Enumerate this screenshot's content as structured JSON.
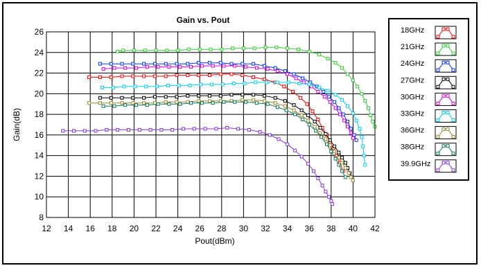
{
  "chart_data": {
    "type": "line",
    "title": "Gain vs. Pout",
    "xlabel": "Pout(dBm)",
    "ylabel": "Gain(dB)",
    "xlim": [
      12,
      42
    ],
    "ylim": [
      8,
      26
    ],
    "xticks": [
      12,
      14,
      16,
      18,
      20,
      22,
      24,
      26,
      28,
      30,
      32,
      34,
      36,
      38,
      40,
      42
    ],
    "yticks": [
      8,
      10,
      12,
      14,
      16,
      18,
      20,
      22,
      24,
      26
    ],
    "grid": true,
    "legend_position": "right",
    "series": [
      {
        "name": "18GHz",
        "color": "#ff0000",
        "points": [
          [
            15.9,
            21.6
          ],
          [
            16.9,
            21.6
          ],
          [
            17.9,
            21.6
          ],
          [
            18.9,
            21.7
          ],
          [
            19.9,
            21.7
          ],
          [
            20.9,
            21.7
          ],
          [
            21.9,
            21.7
          ],
          [
            22.9,
            21.7
          ],
          [
            23.9,
            21.8
          ],
          [
            24.9,
            21.8
          ],
          [
            25.9,
            21.8
          ],
          [
            26.9,
            21.8
          ],
          [
            27.9,
            21.9
          ],
          [
            28.9,
            21.9
          ],
          [
            29.9,
            21.8
          ],
          [
            30.9,
            21.6
          ],
          [
            31.9,
            21.4
          ],
          [
            32.9,
            21.1
          ],
          [
            33.7,
            20.7
          ],
          [
            34.5,
            20.2
          ],
          [
            35.2,
            19.6
          ],
          [
            35.8,
            19.0
          ],
          [
            36.3,
            18.3
          ],
          [
            36.8,
            17.5
          ],
          [
            37.2,
            16.7
          ],
          [
            37.6,
            16.0
          ],
          [
            37.9,
            15.3
          ],
          [
            38.2,
            14.7
          ],
          [
            38.5,
            14.0
          ],
          [
            38.8,
            13.3
          ],
          [
            39.1,
            12.5
          ]
        ]
      },
      {
        "name": "21GHz",
        "color": "#33cc33",
        "points": [
          [
            18.5,
            24.1
          ],
          [
            19.0,
            24.2
          ],
          [
            20.0,
            24.2
          ],
          [
            21.0,
            24.2
          ],
          [
            22.0,
            24.2
          ],
          [
            23.0,
            24.2
          ],
          [
            24.0,
            24.2
          ],
          [
            25.0,
            24.3
          ],
          [
            26.0,
            24.3
          ],
          [
            27.0,
            24.3
          ],
          [
            28.0,
            24.3
          ],
          [
            29.0,
            24.4
          ],
          [
            30.0,
            24.4
          ],
          [
            31.0,
            24.4
          ],
          [
            32.0,
            24.5
          ],
          [
            33.0,
            24.5
          ],
          [
            34.0,
            24.4
          ],
          [
            35.0,
            24.3
          ],
          [
            36.0,
            24.1
          ],
          [
            36.9,
            23.8
          ],
          [
            37.7,
            23.4
          ],
          [
            38.4,
            23.0
          ],
          [
            39.0,
            22.5
          ],
          [
            39.5,
            21.9
          ],
          [
            40.0,
            21.3
          ],
          [
            40.4,
            20.7
          ],
          [
            40.8,
            20.0
          ],
          [
            41.1,
            19.3
          ],
          [
            41.4,
            18.6
          ],
          [
            41.6,
            17.9
          ],
          [
            41.8,
            17.3
          ],
          [
            42.0,
            16.8
          ]
        ]
      },
      {
        "name": "24GHz",
        "color": "#0033ff",
        "points": [
          [
            16.9,
            22.9
          ],
          [
            17.9,
            22.9
          ],
          [
            18.9,
            22.9
          ],
          [
            19.9,
            22.9
          ],
          [
            20.9,
            22.9
          ],
          [
            21.9,
            22.9
          ],
          [
            22.9,
            22.9
          ],
          [
            23.9,
            22.9
          ],
          [
            24.9,
            22.9
          ],
          [
            25.9,
            23.0
          ],
          [
            26.9,
            23.0
          ],
          [
            27.9,
            23.0
          ],
          [
            28.9,
            22.9
          ],
          [
            29.9,
            22.9
          ],
          [
            30.9,
            22.9
          ],
          [
            31.9,
            22.7
          ],
          [
            32.9,
            22.5
          ],
          [
            33.8,
            22.2
          ],
          [
            34.6,
            21.9
          ],
          [
            35.4,
            21.5
          ],
          [
            36.1,
            21.1
          ],
          [
            36.7,
            20.7
          ],
          [
            37.3,
            20.2
          ],
          [
            37.8,
            19.7
          ],
          [
            38.3,
            19.2
          ],
          [
            38.7,
            18.6
          ],
          [
            39.1,
            18.0
          ],
          [
            39.5,
            17.3
          ],
          [
            39.8,
            16.6
          ],
          [
            40.1,
            16.0
          ],
          [
            40.3,
            15.5
          ]
        ]
      },
      {
        "name": "27GHz",
        "color": "#000000",
        "points": [
          [
            16.9,
            19.6
          ],
          [
            17.9,
            19.6
          ],
          [
            18.9,
            19.6
          ],
          [
            19.9,
            19.6
          ],
          [
            20.9,
            19.6
          ],
          [
            21.9,
            19.7
          ],
          [
            22.9,
            19.7
          ],
          [
            23.9,
            19.7
          ],
          [
            24.9,
            19.8
          ],
          [
            25.9,
            19.8
          ],
          [
            26.9,
            19.8
          ],
          [
            27.9,
            19.8
          ],
          [
            28.9,
            19.9
          ],
          [
            29.9,
            19.9
          ],
          [
            30.9,
            19.9
          ],
          [
            31.9,
            19.8
          ],
          [
            32.9,
            19.6
          ],
          [
            33.8,
            19.3
          ],
          [
            34.6,
            18.9
          ],
          [
            35.3,
            18.4
          ],
          [
            35.9,
            17.9
          ],
          [
            36.5,
            17.3
          ],
          [
            37.0,
            16.7
          ],
          [
            37.5,
            16.1
          ],
          [
            37.9,
            15.5
          ],
          [
            38.3,
            14.9
          ],
          [
            38.7,
            14.3
          ],
          [
            39.0,
            13.8
          ],
          [
            39.3,
            13.3
          ],
          [
            39.5,
            12.8
          ],
          [
            39.7,
            12.3
          ],
          [
            39.9,
            11.9
          ]
        ]
      },
      {
        "name": "30GHz",
        "color": "#dd00dd",
        "points": [
          [
            17.2,
            22.4
          ],
          [
            18.2,
            22.5
          ],
          [
            19.2,
            22.5
          ],
          [
            20.2,
            22.5
          ],
          [
            21.2,
            22.6
          ],
          [
            22.2,
            22.6
          ],
          [
            23.2,
            22.6
          ],
          [
            24.2,
            22.6
          ],
          [
            25.2,
            22.6
          ],
          [
            26.2,
            22.7
          ],
          [
            27.2,
            22.7
          ],
          [
            28.2,
            22.7
          ],
          [
            29.2,
            22.7
          ],
          [
            30.2,
            22.6
          ],
          [
            31.2,
            22.5
          ],
          [
            32.2,
            22.4
          ],
          [
            33.1,
            22.2
          ],
          [
            34.0,
            21.9
          ],
          [
            34.8,
            21.5
          ],
          [
            35.5,
            21.1
          ],
          [
            36.2,
            20.7
          ],
          [
            36.8,
            20.2
          ],
          [
            37.4,
            19.7
          ],
          [
            37.9,
            19.2
          ],
          [
            38.4,
            18.6
          ],
          [
            38.8,
            18.0
          ],
          [
            39.2,
            17.4
          ],
          [
            39.5,
            16.8
          ],
          [
            39.8,
            16.2
          ],
          [
            40.0,
            15.7
          ]
        ]
      },
      {
        "name": "33GHz",
        "color": "#00ccee",
        "points": [
          [
            17.1,
            20.6
          ],
          [
            18.1,
            20.6
          ],
          [
            19.1,
            20.7
          ],
          [
            20.1,
            20.7
          ],
          [
            21.1,
            20.7
          ],
          [
            22.1,
            20.7
          ],
          [
            23.1,
            20.8
          ],
          [
            24.1,
            20.8
          ],
          [
            25.1,
            20.8
          ],
          [
            26.1,
            20.9
          ],
          [
            27.1,
            20.9
          ],
          [
            28.1,
            20.9
          ],
          [
            29.1,
            21.0
          ],
          [
            30.1,
            21.0
          ],
          [
            31.1,
            21.1
          ],
          [
            32.1,
            21.1
          ],
          [
            33.1,
            21.1
          ],
          [
            34.1,
            21.1
          ],
          [
            35.1,
            21.0
          ],
          [
            36.0,
            20.9
          ],
          [
            36.9,
            20.6
          ],
          [
            37.7,
            20.3
          ],
          [
            38.4,
            19.9
          ],
          [
            39.0,
            19.4
          ],
          [
            39.5,
            18.8
          ],
          [
            40.0,
            18.1
          ],
          [
            40.3,
            17.4
          ],
          [
            40.6,
            16.6
          ],
          [
            40.8,
            15.8
          ],
          [
            40.9,
            14.9
          ],
          [
            41.0,
            14.0
          ],
          [
            41.1,
            13.1
          ]
        ]
      },
      {
        "name": "36GHz",
        "color": "#998833",
        "points": [
          [
            15.9,
            19.1
          ],
          [
            16.9,
            19.1
          ],
          [
            17.9,
            19.1
          ],
          [
            18.9,
            19.1
          ],
          [
            19.9,
            19.1
          ],
          [
            20.9,
            19.1
          ],
          [
            21.9,
            19.1
          ],
          [
            22.9,
            19.2
          ],
          [
            23.9,
            19.2
          ],
          [
            24.9,
            19.2
          ],
          [
            25.9,
            19.3
          ],
          [
            26.9,
            19.3
          ],
          [
            27.9,
            19.3
          ],
          [
            28.9,
            19.3
          ],
          [
            29.9,
            19.4
          ],
          [
            30.9,
            19.4
          ],
          [
            31.9,
            19.3
          ],
          [
            32.9,
            19.1
          ],
          [
            33.8,
            18.8
          ],
          [
            34.6,
            18.4
          ],
          [
            35.3,
            17.9
          ],
          [
            35.9,
            17.4
          ],
          [
            36.5,
            16.8
          ],
          [
            37.0,
            16.2
          ],
          [
            37.5,
            15.6
          ],
          [
            37.9,
            15.0
          ],
          [
            38.3,
            14.4
          ],
          [
            38.7,
            13.8
          ],
          [
            39.0,
            13.3
          ],
          [
            39.3,
            12.8
          ],
          [
            39.6,
            12.3
          ],
          [
            39.8,
            11.9
          ],
          [
            40.0,
            11.6
          ]
        ]
      },
      {
        "name": "38GHz",
        "color": "#117755",
        "points": [
          [
            17.2,
            18.8
          ],
          [
            18.2,
            18.8
          ],
          [
            19.2,
            18.9
          ],
          [
            20.2,
            18.9
          ],
          [
            21.2,
            18.9
          ],
          [
            22.2,
            19.0
          ],
          [
            23.2,
            19.0
          ],
          [
            24.2,
            19.0
          ],
          [
            25.2,
            19.1
          ],
          [
            26.2,
            19.1
          ],
          [
            27.2,
            19.1
          ],
          [
            28.2,
            19.2
          ],
          [
            29.2,
            19.2
          ],
          [
            30.2,
            19.2
          ],
          [
            31.2,
            19.1
          ],
          [
            32.2,
            19.0
          ],
          [
            33.1,
            18.7
          ],
          [
            33.9,
            18.4
          ],
          [
            34.7,
            18.0
          ],
          [
            35.4,
            17.5
          ],
          [
            36.0,
            17.0
          ],
          [
            36.6,
            16.4
          ],
          [
            37.1,
            15.8
          ],
          [
            37.6,
            15.1
          ],
          [
            38.0,
            14.4
          ],
          [
            38.4,
            13.7
          ],
          [
            38.7,
            13.1
          ],
          [
            39.0,
            12.5
          ],
          [
            39.3,
            11.9
          ]
        ]
      },
      {
        "name": "39.9GHz",
        "color": "#8833dd",
        "points": [
          [
            13.5,
            16.4
          ],
          [
            14.5,
            16.4
          ],
          [
            15.5,
            16.4
          ],
          [
            16.5,
            16.4
          ],
          [
            17.5,
            16.5
          ],
          [
            18.5,
            16.5
          ],
          [
            19.5,
            16.5
          ],
          [
            20.5,
            16.5
          ],
          [
            21.5,
            16.5
          ],
          [
            22.5,
            16.5
          ],
          [
            23.5,
            16.5
          ],
          [
            24.5,
            16.6
          ],
          [
            25.5,
            16.6
          ],
          [
            26.5,
            16.6
          ],
          [
            27.5,
            16.6
          ],
          [
            28.5,
            16.7
          ],
          [
            29.5,
            16.6
          ],
          [
            30.5,
            16.5
          ],
          [
            31.5,
            16.3
          ],
          [
            32.4,
            16.0
          ],
          [
            33.2,
            15.6
          ],
          [
            34.0,
            15.1
          ],
          [
            34.7,
            14.5
          ],
          [
            35.3,
            13.9
          ],
          [
            35.9,
            13.2
          ],
          [
            36.4,
            12.5
          ],
          [
            36.8,
            11.8
          ],
          [
            37.2,
            11.1
          ],
          [
            37.5,
            10.5
          ],
          [
            37.8,
            10.0
          ],
          [
            38.0,
            9.6
          ],
          [
            38.1,
            9.3
          ]
        ]
      }
    ]
  }
}
